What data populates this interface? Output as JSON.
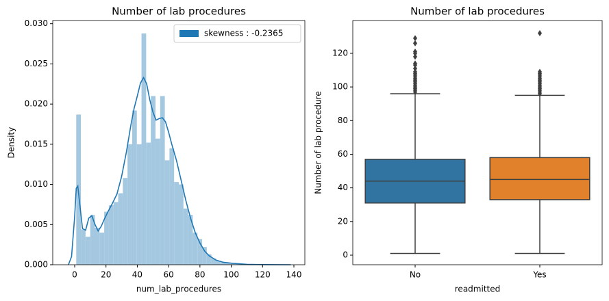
{
  "chart_data": [
    {
      "type": "histogram",
      "title": "Number of lab procedures",
      "xlabel": "num_lab_procedures",
      "ylabel": "Density",
      "bins": [
        1,
        3.98,
        6.95,
        9.93,
        12.91,
        15.89,
        18.86,
        21.84,
        24.82,
        27.8,
        30.77,
        33.75,
        36.73,
        39.7,
        42.68,
        45.66,
        48.64,
        51.61,
        54.59,
        57.57,
        60.55,
        63.52,
        66.5,
        69.48,
        72.45,
        75.43,
        78.41,
        81.39,
        84.36,
        87.34,
        90.32,
        93.3,
        96.27,
        99.25,
        102.23,
        105.2,
        108.18,
        111.16,
        114.14,
        117.11,
        120.09,
        123.07,
        126.05,
        129.02,
        132
      ],
      "values": [
        0.0187,
        0.0044,
        0.0035,
        0.0062,
        0.0046,
        0.004,
        0.0066,
        0.0074,
        0.0078,
        0.0089,
        0.0108,
        0.015,
        0.0192,
        0.015,
        0.0288,
        0.0152,
        0.021,
        0.0157,
        0.021,
        0.013,
        0.0145,
        0.0103,
        0.01,
        0.007,
        0.0062,
        0.004,
        0.0032,
        0.0022,
        0.0013,
        0.0008,
        0.0005,
        0.0003,
        0.0002,
        0.00015,
        0.0001,
        8e-05,
        5e-05,
        4e-05,
        3e-05,
        2e-05,
        2e-05,
        1e-05,
        1e-05,
        1e-05
      ],
      "color": "#a5c8e1",
      "kde": {
        "color": "#1f77b4",
        "x": [
          -4,
          -2,
          0,
          1,
          2,
          3,
          5,
          7,
          9,
          11,
          13,
          15,
          17,
          19,
          21,
          24,
          27,
          30,
          33,
          36,
          38,
          40,
          42,
          44,
          46,
          48,
          50,
          52,
          54,
          56,
          58,
          60,
          62,
          65,
          68,
          71,
          74,
          77,
          80,
          83,
          86,
          90,
          95,
          100,
          110,
          120,
          138
        ],
        "y": [
          0,
          0.001,
          0.006,
          0.0095,
          0.0098,
          0.008,
          0.0045,
          0.0043,
          0.0058,
          0.0061,
          0.005,
          0.0042,
          0.0048,
          0.0057,
          0.0065,
          0.0076,
          0.0088,
          0.011,
          0.014,
          0.0175,
          0.0195,
          0.021,
          0.0226,
          0.0233,
          0.0225,
          0.0205,
          0.019,
          0.018,
          0.0182,
          0.0183,
          0.0178,
          0.0165,
          0.015,
          0.013,
          0.0105,
          0.008,
          0.0058,
          0.004,
          0.0027,
          0.0017,
          0.0011,
          0.0006,
          0.0003,
          0.0002,
          5e-05,
          2e-05,
          0
        ]
      },
      "legend": {
        "label": "skewness : -0.2365",
        "color": "#1f77b4",
        "loc": "upper right"
      },
      "xlim": [
        -14,
        147
      ],
      "xticks": [
        0,
        20,
        40,
        60,
        80,
        100,
        120,
        140
      ],
      "ylim": [
        0,
        0.0304
      ],
      "yticks": [
        {
          "value": 0,
          "label": "0.000"
        },
        {
          "value": 0.005,
          "label": "0.005"
        },
        {
          "value": 0.01,
          "label": "0.010"
        },
        {
          "value": 0.015,
          "label": "0.015"
        },
        {
          "value": 0.02,
          "label": "0.020"
        },
        {
          "value": 0.025,
          "label": "0.025"
        },
        {
          "value": 0.03,
          "label": "0.030"
        }
      ]
    },
    {
      "type": "box",
      "title": "Number of lab procedures",
      "xlabel": "readmitted",
      "ylabel": "Number of lab procedure",
      "categories": [
        "No",
        "Yes"
      ],
      "boxes": [
        {
          "color": "#3274a1",
          "whisker_low": 1,
          "q1": 31,
          "median": 44,
          "q3": 57,
          "whisker_high": 96,
          "outliers": [
            97,
            98,
            99,
            100,
            101,
            102,
            103,
            104,
            105,
            106,
            107,
            108,
            109,
            111,
            113,
            114,
            118,
            120,
            121,
            126,
            129
          ]
        },
        {
          "color": "#e1812c",
          "whisker_low": 1,
          "q1": 33,
          "median": 45,
          "q3": 58,
          "whisker_high": 95,
          "outliers": [
            96,
            97,
            98,
            99,
            100,
            101,
            102,
            103,
            104,
            105,
            106,
            107,
            108,
            109,
            132
          ]
        }
      ],
      "ylim": [
        -5.7,
        139.5
      ],
      "yticks": [
        0,
        20,
        40,
        60,
        80,
        100,
        120
      ]
    }
  ]
}
